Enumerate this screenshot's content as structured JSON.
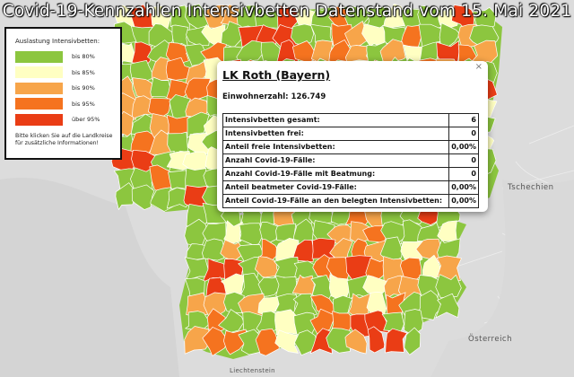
{
  "title": "Covid-19-Kennzahlen Intensivbetten Datenstand vom 15. Mai 2021",
  "legend": {
    "heading": "Auslastung Intensivbetten:",
    "items": [
      {
        "label": "bis 80%",
        "color": "#8cc63f"
      },
      {
        "label": "bis 85%",
        "color": "#ffffc2"
      },
      {
        "label": "bis 90%",
        "color": "#f7a54a"
      },
      {
        "label": "bis 95%",
        "color": "#f5731f"
      },
      {
        "label": "über 95%",
        "color": "#ea3d15"
      }
    ],
    "note": "Bitte klicken Sie auf die Landkreise für zusätzliche Informationen!"
  },
  "popup": {
    "title": "LK Roth (Bayern)",
    "population": "Einwohnerzahl: 126.749",
    "close_symbol": "×",
    "rows": [
      {
        "label": "Intensivbetten gesamt:",
        "value": "6"
      },
      {
        "label": "Intensivbetten frei:",
        "value": "0"
      },
      {
        "label": "Anteil freie Intensivbetten:",
        "value": "0,00%"
      },
      {
        "label": "Anzahl Covid-19-Fälle:",
        "value": "0"
      },
      {
        "label": "Anzahl Covid-19-Fälle mit Beatmung:",
        "value": "0"
      },
      {
        "label": "Anteil beatmeter Covid-19-Fälle:",
        "value": "0,00%"
      },
      {
        "label": "Anteil Covid-19-Fälle an den belegten Intensivbetten:",
        "value": "0,00%"
      }
    ]
  },
  "map_labels": {
    "czech": "Tschechien",
    "austria": "Österreich",
    "liechtenstein": "Liechtenstein"
  }
}
